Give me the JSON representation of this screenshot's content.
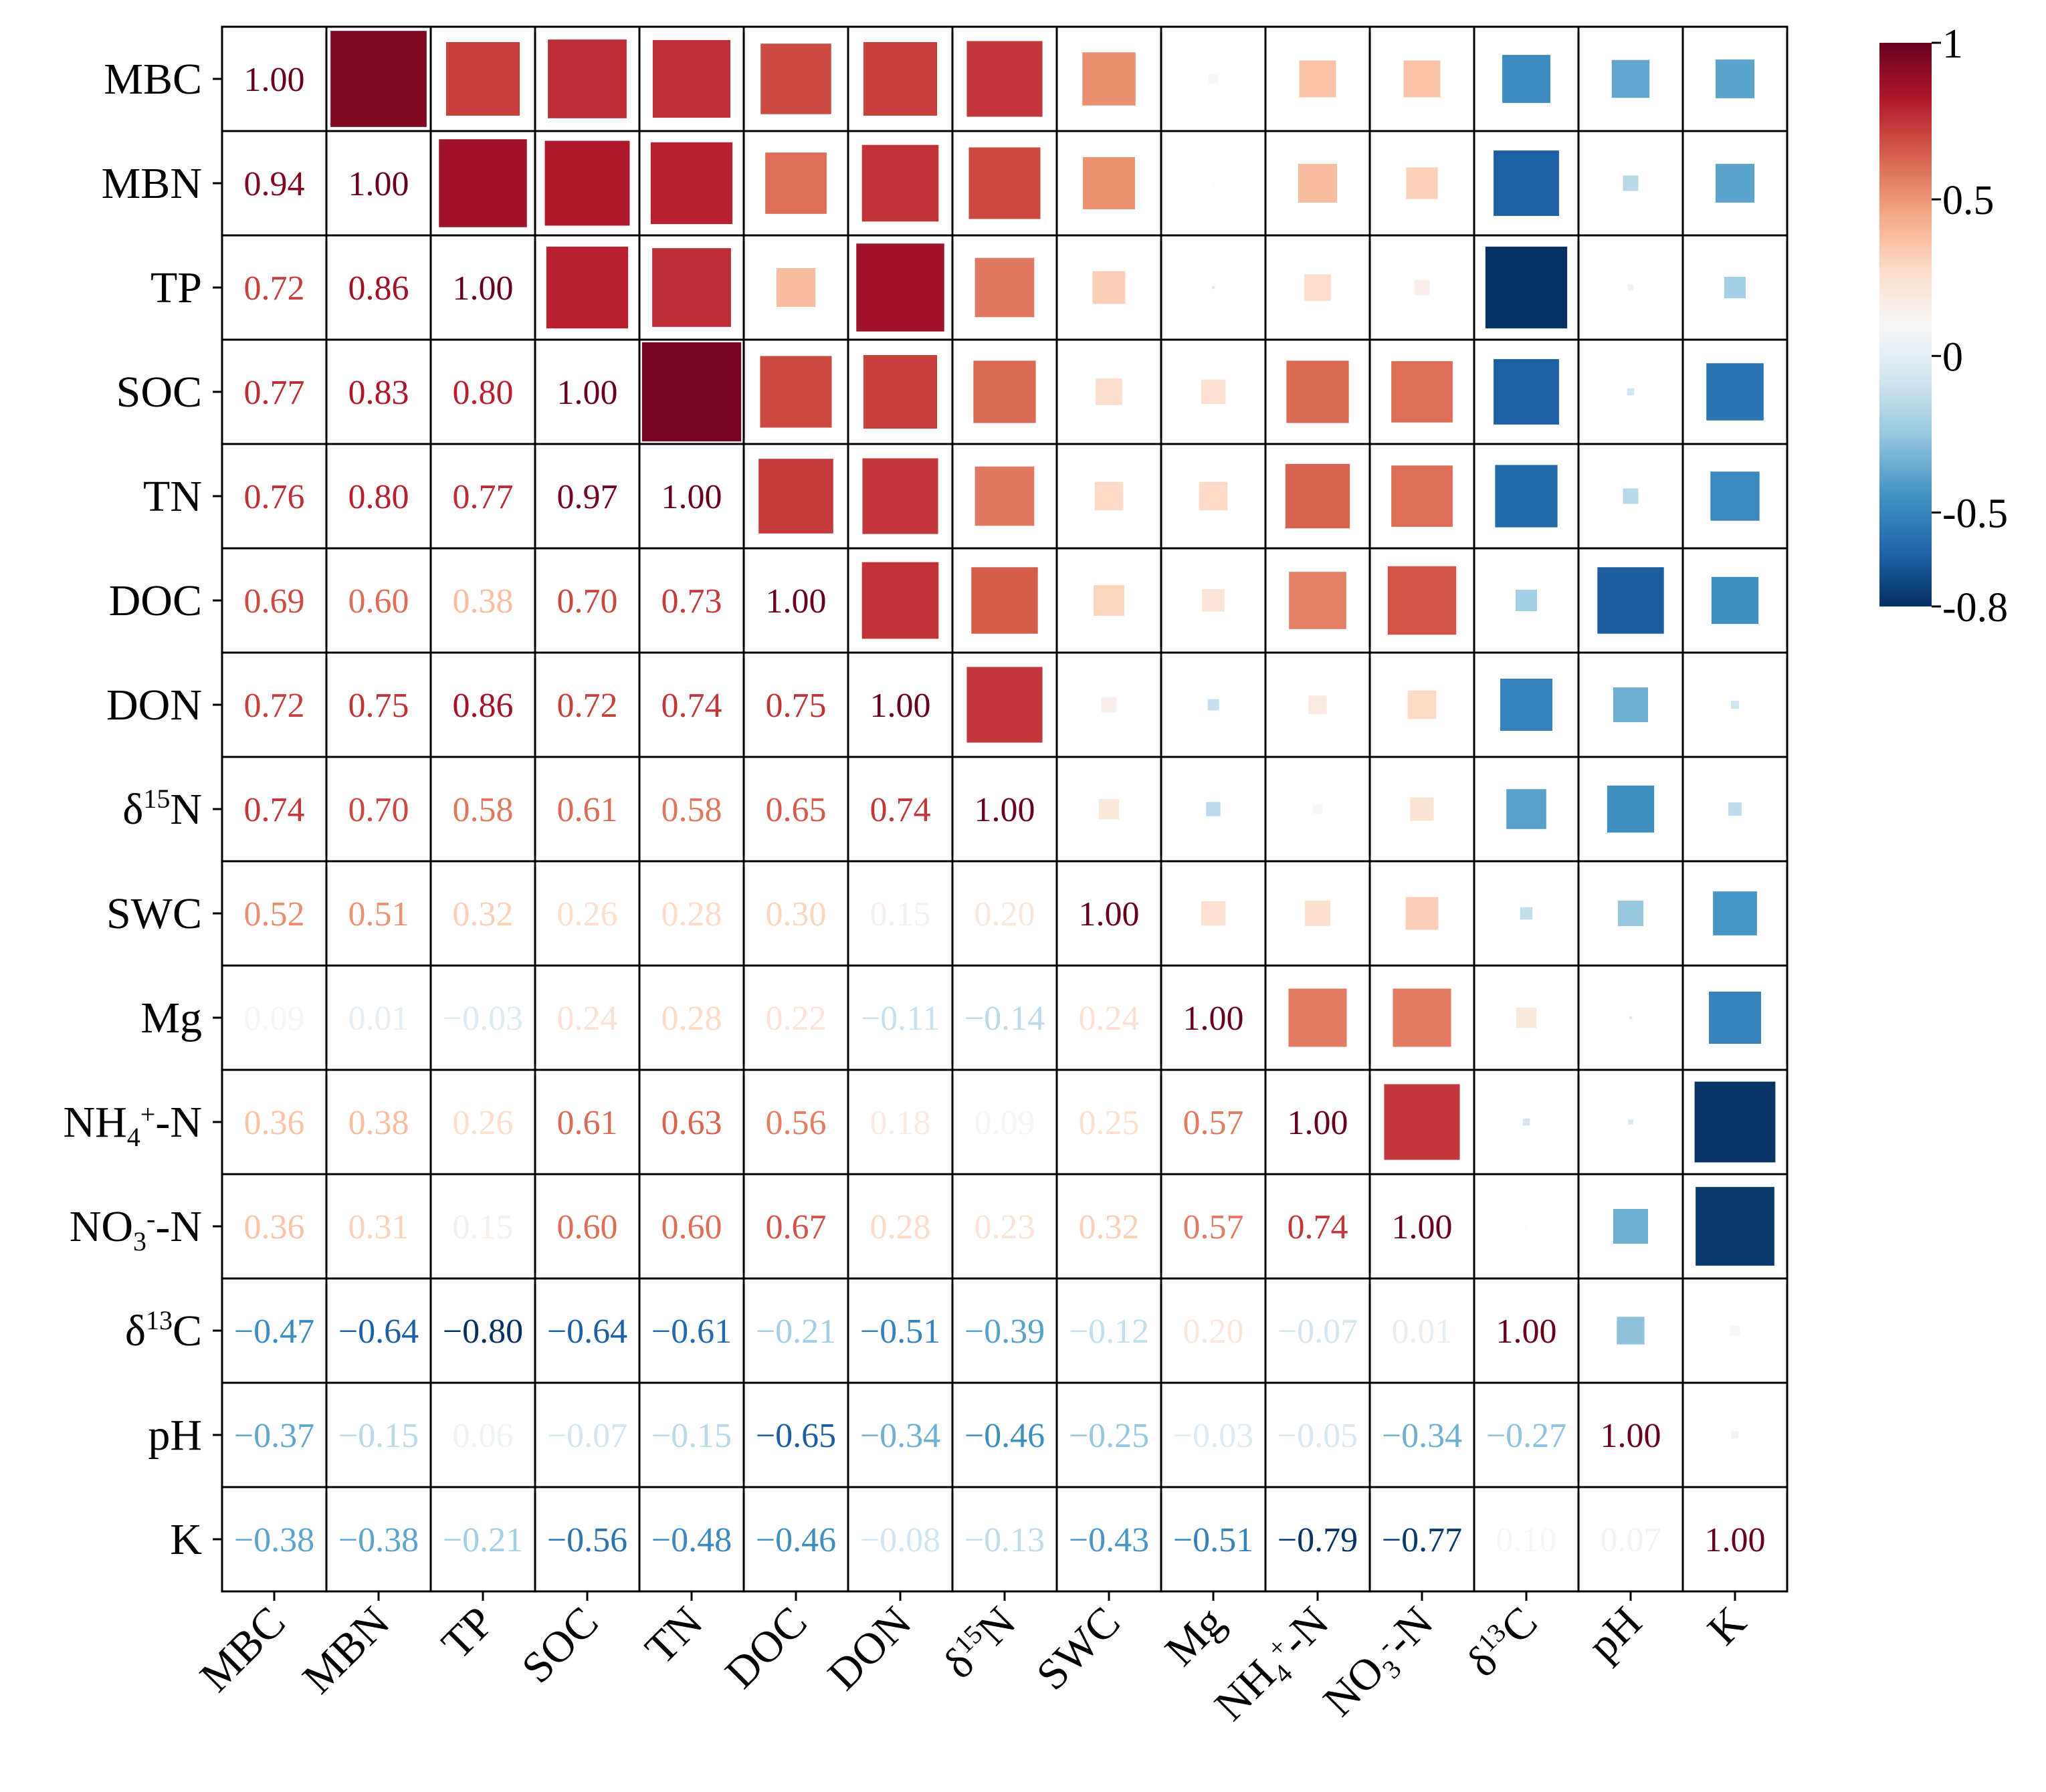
{
  "chart_data": {
    "type": "heatmap",
    "title": "",
    "variables": [
      "MBC",
      "MBN",
      "TP",
      "SOC",
      "TN",
      "DOC",
      "DON",
      "δ15N",
      "SWC",
      "Mg",
      "NH4+-N",
      "NO3--N",
      "δ13C",
      "pH",
      "K"
    ],
    "labels": [
      {
        "base": "MBC",
        "sup": "",
        "sub": "",
        "pre": ""
      },
      {
        "base": "MBN",
        "sup": "",
        "sub": "",
        "pre": ""
      },
      {
        "base": "TP",
        "sup": "",
        "sub": "",
        "pre": ""
      },
      {
        "base": "SOC",
        "sup": "",
        "sub": "",
        "pre": ""
      },
      {
        "base": "TN",
        "sup": "",
        "sub": "",
        "pre": ""
      },
      {
        "base": "DOC",
        "sup": "",
        "sub": "",
        "pre": ""
      },
      {
        "base": "DON",
        "sup": "",
        "sub": "",
        "pre": ""
      },
      {
        "pre": "δ",
        "sup": "15",
        "base": "N",
        "sub": ""
      },
      {
        "base": "SWC",
        "sup": "",
        "sub": "",
        "pre": ""
      },
      {
        "base": "Mg",
        "sup": "",
        "sub": "",
        "pre": ""
      },
      {
        "pre": "NH",
        "sub": "4",
        "sup": "+",
        "base": "-N"
      },
      {
        "pre": "NO",
        "sub": "3",
        "sup": "-",
        "base": "-N"
      },
      {
        "pre": "δ",
        "sup": "13",
        "base": "C",
        "sub": ""
      },
      {
        "base": "pH",
        "sup": "",
        "sub": "",
        "pre": ""
      },
      {
        "base": "K",
        "sup": "",
        "sub": "",
        "pre": ""
      }
    ],
    "lower_triangle": "numbers",
    "upper_triangle": "squares sized by |r|",
    "matrix": [
      [
        1.0,
        0.94,
        0.72,
        0.77,
        0.76,
        0.69,
        0.72,
        0.74,
        0.52,
        0.09,
        0.36,
        0.36,
        -0.47,
        -0.37,
        -0.38
      ],
      [
        0.94,
        1.0,
        0.86,
        0.83,
        0.8,
        0.6,
        0.75,
        0.7,
        0.51,
        0.01,
        0.38,
        0.31,
        -0.64,
        -0.15,
        -0.38
      ],
      [
        0.72,
        0.86,
        1.0,
        0.8,
        0.77,
        0.38,
        0.86,
        0.58,
        0.32,
        -0.03,
        0.26,
        0.15,
        -0.8,
        0.06,
        -0.21
      ],
      [
        0.77,
        0.83,
        0.8,
        1.0,
        0.97,
        0.7,
        0.72,
        0.61,
        0.26,
        0.24,
        0.61,
        0.6,
        -0.64,
        -0.07,
        -0.56
      ],
      [
        0.76,
        0.8,
        0.77,
        0.97,
        1.0,
        0.73,
        0.74,
        0.58,
        0.28,
        0.28,
        0.63,
        0.6,
        -0.61,
        -0.15,
        -0.48
      ],
      [
        0.69,
        0.6,
        0.38,
        0.7,
        0.73,
        1.0,
        0.75,
        0.65,
        0.3,
        0.22,
        0.56,
        0.67,
        -0.21,
        -0.65,
        -0.46
      ],
      [
        0.72,
        0.75,
        0.86,
        0.72,
        0.74,
        0.75,
        1.0,
        0.74,
        0.15,
        -0.11,
        0.18,
        0.28,
        -0.51,
        -0.34,
        -0.08
      ],
      [
        0.74,
        0.7,
        0.58,
        0.61,
        0.58,
        0.65,
        0.74,
        1.0,
        0.2,
        -0.14,
        0.09,
        0.23,
        -0.39,
        -0.46,
        -0.13
      ],
      [
        0.52,
        0.51,
        0.32,
        0.26,
        0.28,
        0.3,
        0.15,
        0.2,
        1.0,
        0.24,
        0.25,
        0.32,
        -0.12,
        -0.25,
        -0.43
      ],
      [
        0.09,
        0.01,
        -0.03,
        0.24,
        0.28,
        0.22,
        -0.11,
        -0.14,
        0.24,
        1.0,
        0.57,
        0.57,
        0.2,
        -0.03,
        -0.51
      ],
      [
        0.36,
        0.38,
        0.26,
        0.61,
        0.63,
        0.56,
        0.18,
        0.09,
        0.25,
        0.57,
        1.0,
        0.74,
        -0.07,
        -0.05,
        -0.79
      ],
      [
        0.36,
        0.31,
        0.15,
        0.6,
        0.6,
        0.67,
        0.28,
        0.23,
        0.32,
        0.57,
        0.74,
        1.0,
        0.01,
        -0.34,
        -0.77
      ],
      [
        -0.47,
        -0.64,
        -0.8,
        -0.64,
        -0.61,
        -0.21,
        -0.51,
        -0.39,
        -0.12,
        0.2,
        -0.07,
        0.01,
        1.0,
        -0.27,
        0.1
      ],
      [
        -0.37,
        -0.15,
        0.06,
        -0.07,
        -0.15,
        -0.65,
        -0.34,
        -0.46,
        -0.25,
        -0.03,
        -0.05,
        -0.34,
        -0.27,
        1.0,
        0.07
      ],
      [
        -0.38,
        -0.38,
        -0.21,
        -0.56,
        -0.48,
        -0.46,
        -0.08,
        -0.13,
        -0.43,
        -0.51,
        -0.79,
        -0.77,
        0.1,
        0.07,
        1.0
      ]
    ],
    "colormap": "RdBu_r",
    "vmin": -0.8,
    "vmax": 1,
    "colorbar": {
      "ticks": [
        1,
        0.5,
        0,
        -0.5,
        -0.8
      ],
      "tick_labels": [
        "1",
        "0.5",
        "0",
        "-0.5",
        "-0.8"
      ],
      "placement": "right"
    }
  }
}
